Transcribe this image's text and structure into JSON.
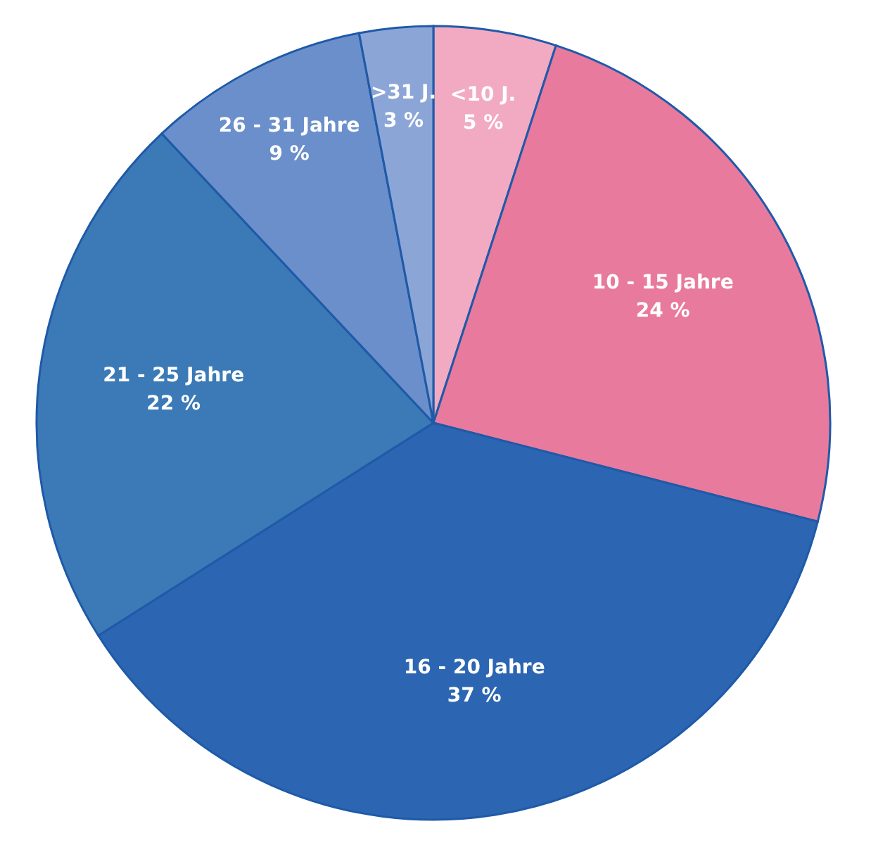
{
  "chart_data": {
    "type": "pie",
    "categories": [
      "<10 J.",
      "10 - 15 Jahre",
      "16 - 20 Jahre",
      "21 - 25 Jahre",
      "26 - 31 Jahre",
      ">31 J."
    ],
    "values": [
      5,
      24,
      37,
      22,
      9,
      3
    ],
    "value_labels": [
      "5 %",
      "24 %",
      "37 %",
      "22 %",
      "9 %",
      "3 %"
    ],
    "colors": [
      "#f2aac2",
      "#e87a9e",
      "#2c66b2",
      "#3b7ab6",
      "#6b8fca",
      "#8ba6d6"
    ]
  }
}
